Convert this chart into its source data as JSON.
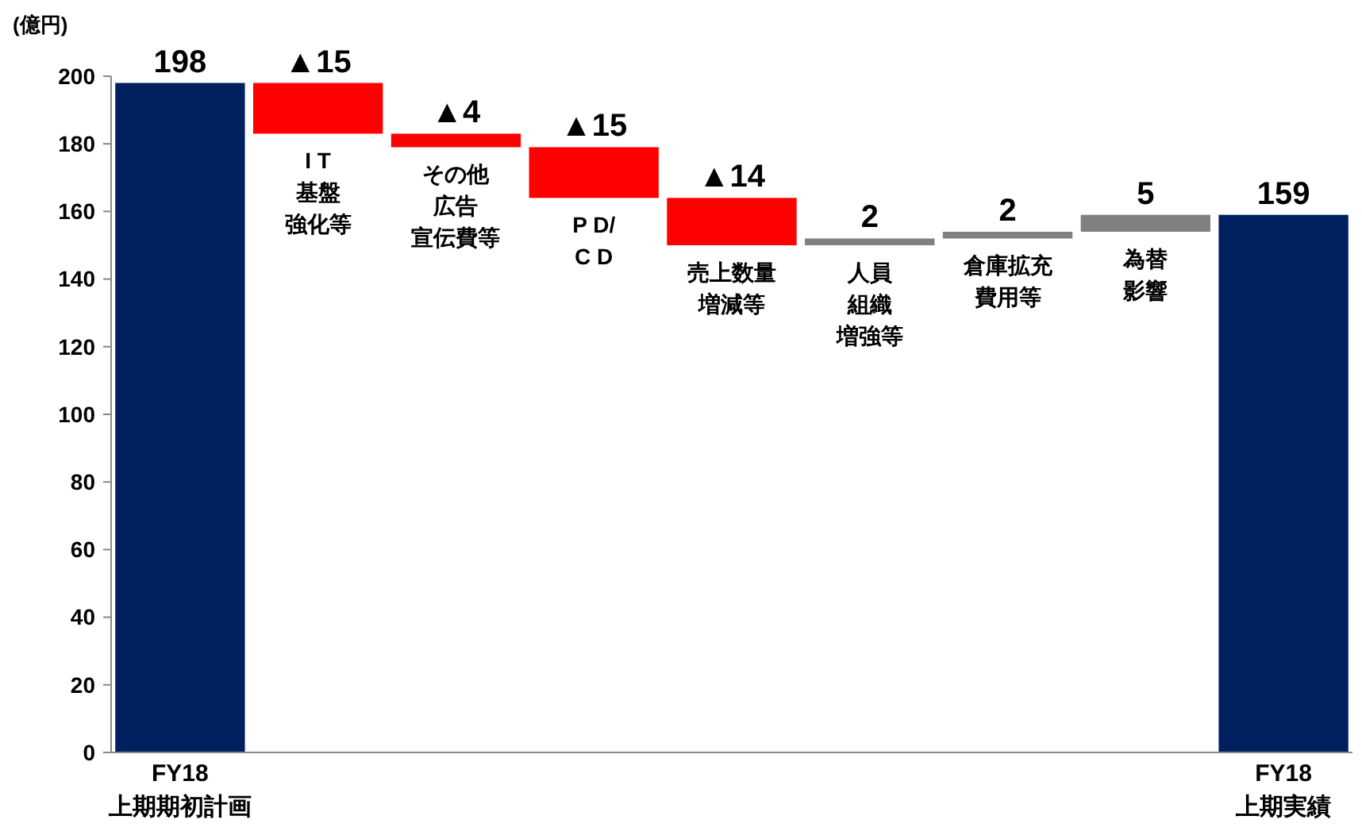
{
  "chart_data": {
    "type": "bar",
    "ylabel": "(億円)",
    "categories": [
      "FY18\n上期期初計画",
      "I T基盤強化等",
      "その他広告宣伝費等",
      "P D/\nC D",
      "売上数量増減等",
      "人員組織増強等",
      "倉庫拡充費用等",
      "為替影響",
      "FY18\n上期実績"
    ],
    "base": [
      0,
      198,
      183,
      179,
      164,
      150,
      152,
      154,
      0
    ],
    "values": [
      198,
      -15,
      -4,
      -15,
      -14,
      2,
      2,
      5,
      159
    ],
    "colors": [
      "#002060",
      "#ff0000",
      "#ff0000",
      "#ff0000",
      "#ff0000",
      "#808080",
      "#808080",
      "#808080",
      "#002060"
    ],
    "value_labels": [
      "198",
      "▲15",
      "▲4",
      "▲15",
      "▲14",
      "2",
      "2",
      "5",
      "159"
    ],
    "ylim": [
      0,
      200
    ],
    "yticks": [
      0,
      20,
      40,
      60,
      80,
      100,
      120,
      140,
      160,
      180,
      200
    ],
    "grid": false
  }
}
